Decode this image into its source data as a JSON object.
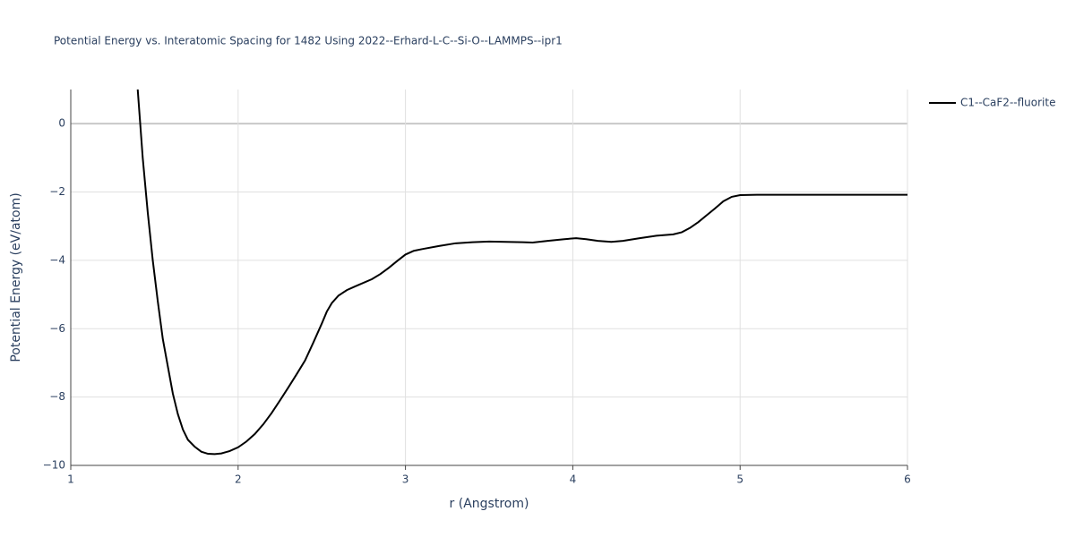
{
  "chart_data": {
    "type": "line",
    "title": "Potential Energy vs. Interatomic Spacing for 1482 Using 2022--Erhard-L-C--Si-O--LAMMPS--ipr1",
    "x_label": "r (Angstrom)",
    "y_label": "Potential Energy (eV/atom)",
    "xlim": [
      1,
      6
    ],
    "ylim": [
      -10,
      1
    ],
    "xticks": [
      1,
      2,
      3,
      4,
      5,
      6
    ],
    "yticks": [
      {
        "value": -10,
        "label": "−10"
      },
      {
        "value": -8,
        "label": "−8"
      },
      {
        "value": -6,
        "label": "−6"
      },
      {
        "value": -4,
        "label": "−4"
      },
      {
        "value": -2,
        "label": "−2"
      },
      0
    ],
    "grid": true,
    "legend": "right",
    "series": [
      {
        "name": "C1--CaF2--fluorite",
        "color": "#000000",
        "x": [
          1.4,
          1.43,
          1.46,
          1.49,
          1.52,
          1.55,
          1.58,
          1.61,
          1.64,
          1.67,
          1.7,
          1.74,
          1.78,
          1.82,
          1.86,
          1.9,
          1.95,
          2.0,
          2.05,
          2.1,
          2.15,
          2.2,
          2.25,
          2.3,
          2.35,
          2.4,
          2.45,
          2.5,
          2.53,
          2.56,
          2.6,
          2.65,
          2.7,
          2.8,
          2.85,
          2.9,
          2.95,
          3.0,
          3.05,
          3.1,
          3.2,
          3.3,
          3.4,
          3.5,
          3.6,
          3.7,
          3.76,
          3.85,
          3.95,
          4.02,
          4.08,
          4.15,
          4.23,
          4.3,
          4.4,
          4.5,
          4.6,
          4.65,
          4.7,
          4.75,
          4.8,
          4.85,
          4.9,
          4.95,
          5.0,
          5.1,
          6.0
        ],
        "values": [
          1.0,
          -1.0,
          -2.6,
          -4.0,
          -5.2,
          -6.3,
          -7.1,
          -7.9,
          -8.5,
          -8.95,
          -9.25,
          -9.45,
          -9.6,
          -9.66,
          -9.67,
          -9.65,
          -9.58,
          -9.47,
          -9.3,
          -9.08,
          -8.8,
          -8.47,
          -8.1,
          -7.72,
          -7.33,
          -6.93,
          -6.4,
          -5.85,
          -5.5,
          -5.25,
          -5.03,
          -4.87,
          -4.76,
          -4.55,
          -4.4,
          -4.22,
          -4.02,
          -3.83,
          -3.72,
          -3.67,
          -3.58,
          -3.5,
          -3.47,
          -3.45,
          -3.46,
          -3.47,
          -3.48,
          -3.43,
          -3.38,
          -3.35,
          -3.38,
          -3.43,
          -3.46,
          -3.43,
          -3.35,
          -3.28,
          -3.24,
          -3.18,
          -3.05,
          -2.88,
          -2.68,
          -2.48,
          -2.27,
          -2.14,
          -2.09,
          -2.08,
          -2.08
        ]
      }
    ]
  }
}
